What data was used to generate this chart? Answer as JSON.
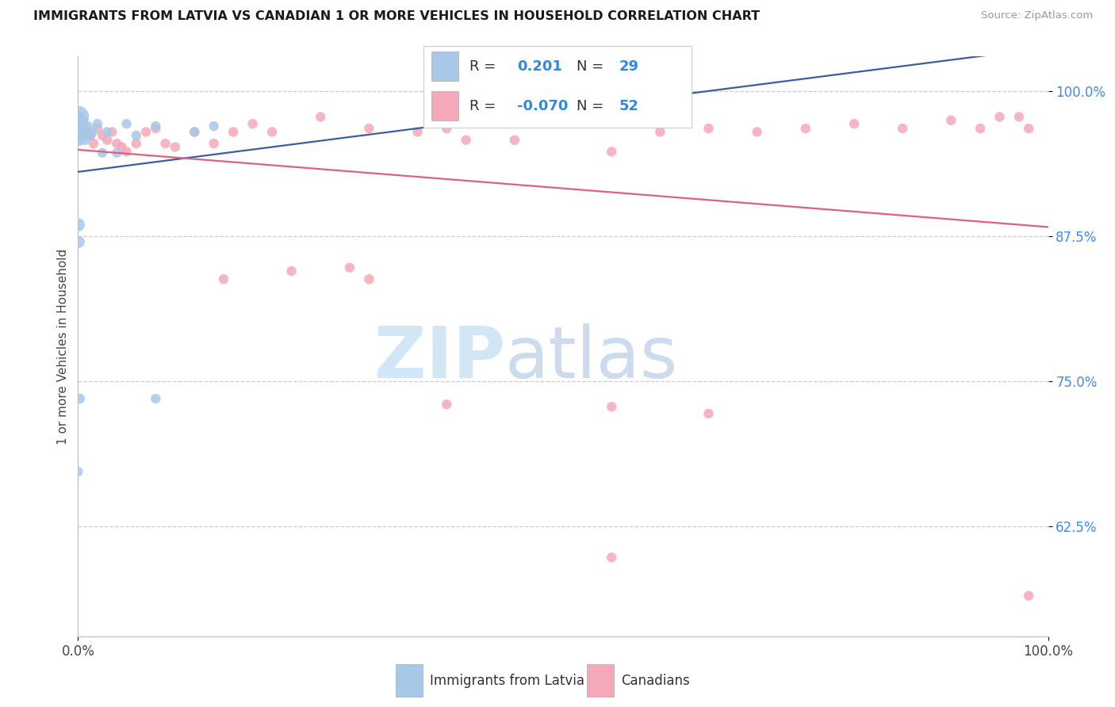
{
  "title": "IMMIGRANTS FROM LATVIA VS CANADIAN 1 OR MORE VEHICLES IN HOUSEHOLD CORRELATION CHART",
  "source": "Source: ZipAtlas.com",
  "ylabel": "1 or more Vehicles in Household",
  "ytick_values": [
    0.625,
    0.75,
    0.875,
    1.0
  ],
  "ytick_labels": [
    "62.5%",
    "75.0%",
    "87.5%",
    "100.0%"
  ],
  "xtick_values": [
    0.0,
    1.0
  ],
  "xtick_labels": [
    "0.0%",
    "100.0%"
  ],
  "xmin": 0.0,
  "xmax": 1.0,
  "ymin": 0.53,
  "ymax": 1.03,
  "blue_label": "Immigrants from Latvia",
  "pink_label": "Canadians",
  "blue_color": "#A8C8E8",
  "pink_color": "#F4A8B8",
  "blue_line_color": "#3A5FA0",
  "pink_line_color": "#E06080",
  "legend_color": "#3388DD",
  "blue_R_text": "0.201",
  "blue_N_text": "29",
  "pink_R_text": "-0.070",
  "pink_N_text": "52",
  "blue_x": [
    0.0,
    0.0,
    0.0,
    0.0,
    0.0,
    0.001,
    0.001,
    0.002,
    0.002,
    0.003,
    0.004,
    0.005,
    0.006,
    0.007,
    0.008,
    0.01,
    0.012,
    0.015,
    0.02,
    0.025,
    0.03,
    0.04,
    0.05,
    0.06,
    0.08,
    0.12,
    0.14,
    0.08,
    0.0
  ],
  "blue_y": [
    0.978,
    0.972,
    0.967,
    0.962,
    0.885,
    0.958,
    0.87,
    0.972,
    0.735,
    0.972,
    0.965,
    0.962,
    0.968,
    0.958,
    0.965,
    0.97,
    0.962,
    0.965,
    0.972,
    0.947,
    0.965,
    0.947,
    0.972,
    0.962,
    0.97,
    0.965,
    0.97,
    0.735,
    0.672
  ],
  "blue_sizes": [
    400,
    350,
    260,
    180,
    150,
    120,
    110,
    100,
    80,
    80,
    80,
    80,
    80,
    80,
    80,
    80,
    80,
    80,
    80,
    80,
    80,
    80,
    80,
    80,
    80,
    80,
    80,
    80,
    80
  ],
  "pink_x": [
    0.002,
    0.004,
    0.006,
    0.008,
    0.01,
    0.013,
    0.016,
    0.02,
    0.025,
    0.03,
    0.035,
    0.04,
    0.045,
    0.05,
    0.06,
    0.07,
    0.08,
    0.09,
    0.1,
    0.12,
    0.14,
    0.16,
    0.18,
    0.2,
    0.25,
    0.3,
    0.35,
    0.4,
    0.45,
    0.5,
    0.55,
    0.6,
    0.65,
    0.7,
    0.75,
    0.8,
    0.85,
    0.9,
    0.93,
    0.95,
    0.97,
    0.98,
    0.22,
    0.28,
    0.15,
    0.3,
    0.38,
    0.55,
    0.65,
    0.38,
    0.55,
    0.98
  ],
  "pink_y": [
    0.978,
    0.972,
    0.968,
    0.962,
    0.965,
    0.962,
    0.955,
    0.968,
    0.962,
    0.958,
    0.965,
    0.955,
    0.952,
    0.948,
    0.955,
    0.965,
    0.968,
    0.955,
    0.952,
    0.965,
    0.955,
    0.965,
    0.972,
    0.965,
    0.978,
    0.968,
    0.965,
    0.958,
    0.958,
    0.978,
    0.948,
    0.965,
    0.968,
    0.965,
    0.968,
    0.972,
    0.968,
    0.975,
    0.968,
    0.978,
    0.978,
    0.968,
    0.845,
    0.848,
    0.838,
    0.838,
    0.968,
    0.728,
    0.722,
    0.73,
    0.598,
    0.565
  ],
  "pink_sizes": [
    80,
    80,
    80,
    80,
    80,
    80,
    80,
    80,
    80,
    80,
    80,
    80,
    80,
    80,
    80,
    80,
    80,
    80,
    80,
    80,
    80,
    80,
    80,
    80,
    80,
    80,
    80,
    80,
    80,
    80,
    80,
    80,
    80,
    80,
    80,
    80,
    80,
    80,
    80,
    80,
    80,
    80,
    80,
    80,
    80,
    80,
    80,
    80,
    80,
    80,
    80,
    80
  ]
}
